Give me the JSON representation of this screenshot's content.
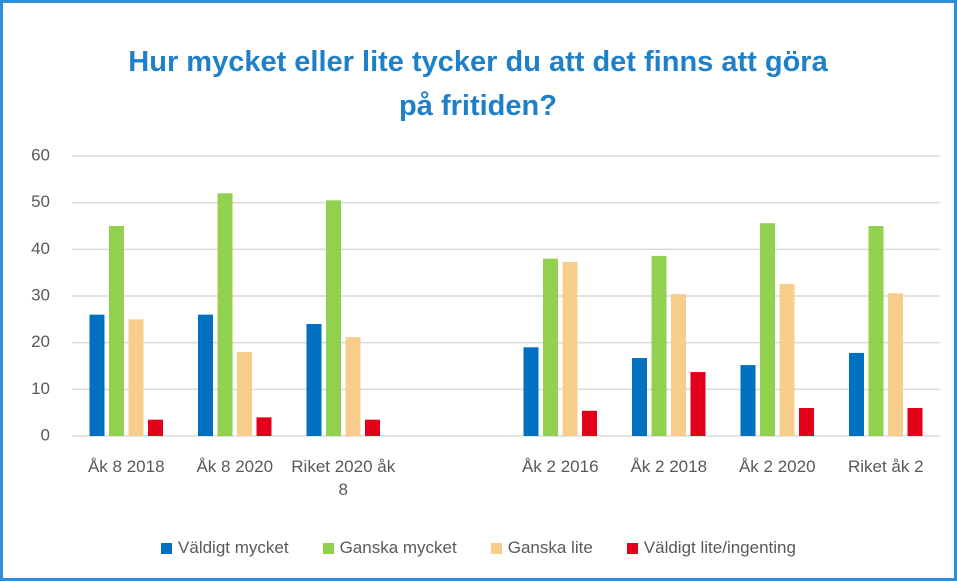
{
  "chart_data": {
    "type": "bar",
    "title": "Hur mycket eller lite tycker du att det finns att göra på fritiden?",
    "categories": [
      "Åk 8 2018",
      "Åk 8 2020",
      "Riket 2020 åk 8",
      null,
      "Åk 2 2016",
      "Åk 2 2018",
      "Åk 2 2020",
      "Riket åk 2"
    ],
    "series": [
      {
        "name": "Väldigt mycket",
        "color": "#0070c0",
        "values": [
          26,
          26,
          24,
          null,
          19,
          16.7,
          15.2,
          17.8
        ]
      },
      {
        "name": "Ganska mycket",
        "color": "#92d050",
        "values": [
          45,
          52,
          50.5,
          null,
          38,
          38.6,
          45.6,
          45
        ]
      },
      {
        "name": "Ganska lite",
        "color": "#f7cd8c",
        "values": [
          25,
          18,
          21.2,
          null,
          37.3,
          30.4,
          32.6,
          30.6
        ]
      },
      {
        "name": "Väldigt lite/ingenting",
        "color": "#e3001b",
        "values": [
          3.5,
          4,
          3.5,
          null,
          5.4,
          13.7,
          6,
          6
        ]
      }
    ],
    "ylim": [
      0,
      60
    ],
    "yticks": [
      0,
      10,
      20,
      30,
      40,
      50,
      60
    ],
    "grid": true,
    "legend": "bottom"
  }
}
